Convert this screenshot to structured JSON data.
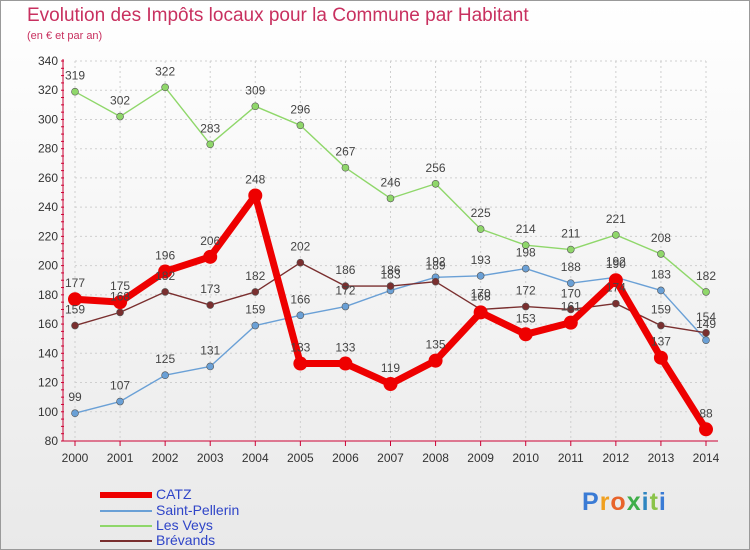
{
  "header": {
    "title": "Evolution des Impôts locaux pour la Commune par Habitant",
    "subtitle": "(en € et par an)"
  },
  "logo": {
    "text": "Proxiti",
    "colors": [
      "#3a7bd5",
      "#f0a020",
      "#e8632a",
      "#3fae49",
      "#2e86c1",
      "#8bc34a",
      "#3a7bd5"
    ]
  },
  "chart_data": {
    "type": "line",
    "title": "Evolution des Impôts locaux pour la Commune par Habitant",
    "subtitle": "(en € et par an)",
    "xlabel": "",
    "ylabel": "",
    "x": [
      "2000",
      "2001",
      "2002",
      "2003",
      "2004",
      "2005",
      "2006",
      "2007",
      "2008",
      "2009",
      "2010",
      "2011",
      "2012",
      "2013",
      "2014"
    ],
    "ylim": [
      80,
      340
    ],
    "yticks": [
      80,
      100,
      120,
      140,
      160,
      180,
      200,
      220,
      240,
      260,
      280,
      300,
      320,
      340
    ],
    "grid": true,
    "legend_position": "bottom-left",
    "series": [
      {
        "name": "CATZ",
        "color": "#ee0000",
        "emphasis": true,
        "values": [
          177,
          175,
          196,
          206,
          248,
          133,
          133,
          119,
          135,
          168,
          153,
          161,
          190,
          137,
          88
        ],
        "labels": [
          "177",
          "175",
          "196",
          "206",
          "248",
          "133",
          "133",
          "119",
          "135",
          "168",
          "153",
          "161",
          "190",
          "137",
          "88"
        ]
      },
      {
        "name": "Saint-Pellerin",
        "color": "#6aa0d6",
        "values": [
          99,
          107,
          125,
          131,
          159,
          166,
          172,
          183,
          192,
          193,
          198,
          188,
          192,
          183,
          149
        ],
        "labels": [
          "99",
          "107",
          "125",
          "131",
          "159",
          "166",
          "172",
          "183",
          "192",
          "193",
          "198",
          "188",
          "192",
          "183",
          "149"
        ]
      },
      {
        "name": "Les Veys",
        "color": "#8fd76a",
        "values": [
          319,
          302,
          322,
          283,
          309,
          296,
          267,
          246,
          256,
          225,
          214,
          211,
          221,
          208,
          182
        ],
        "labels": [
          "319",
          "302",
          "322",
          "283",
          "309",
          "296",
          "267",
          "246",
          "256",
          "225",
          "214",
          "211",
          "221",
          "208",
          "182"
        ]
      },
      {
        "name": "Brévands",
        "color": "#7a2f2f",
        "values": [
          159,
          168,
          182,
          173,
          182,
          202,
          186,
          186,
          189,
          170,
          172,
          170,
          174,
          159,
          154
        ],
        "labels": [
          "159",
          "168",
          "182",
          "173",
          "182",
          "202",
          "186",
          "186",
          "189",
          "170",
          "172",
          "170",
          "174",
          "159",
          "154"
        ]
      }
    ]
  }
}
